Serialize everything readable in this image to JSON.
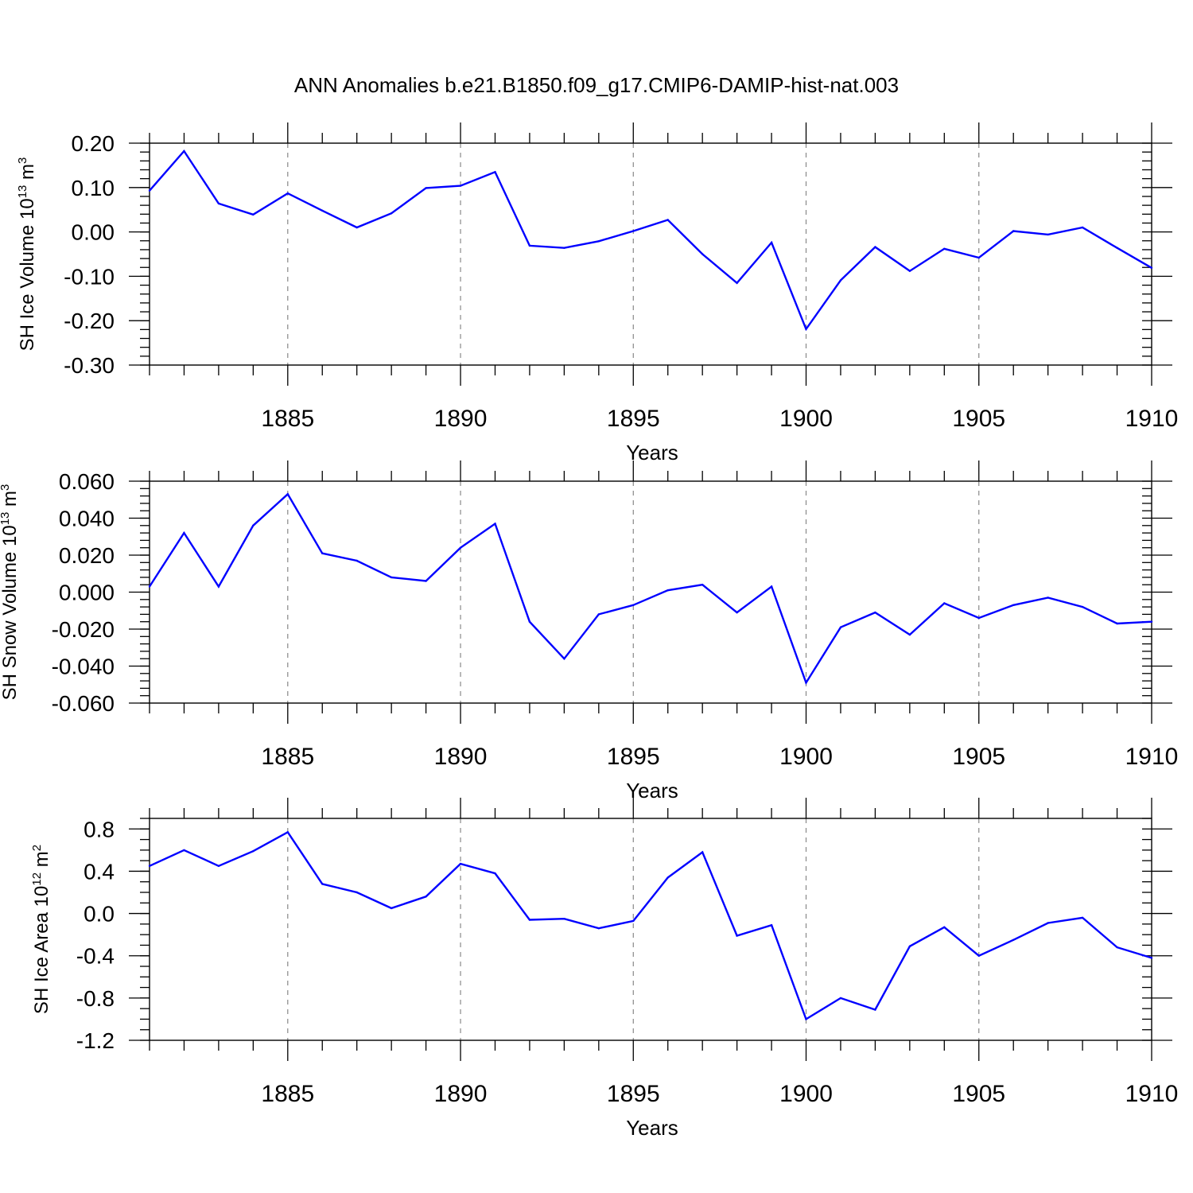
{
  "title": "ANN Anomalies b.e21.B1850.f09_g17.CMIP6-DAMIP-hist-nat.003",
  "colors": {
    "line": "#0000ff",
    "axis": "#000000",
    "grid": "#888888"
  },
  "chart_data": [
    {
      "type": "line",
      "ylabel_main": "SH Ice Volume 10",
      "ylabel_exp": "13",
      "ylabel_unit": " m",
      "ylabel_unit_exp": "3",
      "xlabel": "Years",
      "xlim": [
        1881,
        1910
      ],
      "ylim": [
        -0.3,
        0.2
      ],
      "yticks": [
        0.2,
        0.1,
        0.0,
        -0.1,
        -0.2,
        -0.3
      ],
      "ytick_labels": [
        "0.20",
        "0.10",
        "0.00",
        "-0.10",
        "-0.20",
        "-0.30"
      ],
      "yminor_step": 0.02,
      "xticks": [
        1885,
        1890,
        1895,
        1900,
        1905,
        1910
      ],
      "xtick_labels": [
        "1885",
        "1890",
        "1895",
        "1900",
        "1905",
        "1910"
      ],
      "x": [
        1881,
        1882,
        1883,
        1884,
        1885,
        1886,
        1887,
        1888,
        1889,
        1890,
        1891,
        1892,
        1893,
        1894,
        1895,
        1896,
        1897,
        1898,
        1899,
        1900,
        1901,
        1902,
        1903,
        1904,
        1905,
        1906,
        1907,
        1908,
        1909,
        1910
      ],
      "values": [
        0.093,
        0.182,
        0.064,
        0.039,
        0.087,
        0.048,
        0.01,
        0.042,
        0.099,
        0.104,
        0.135,
        -0.031,
        -0.036,
        -0.021,
        0.002,
        0.027,
        -0.05,
        -0.115,
        -0.024,
        -0.219,
        -0.109,
        -0.034,
        -0.088,
        -0.038,
        -0.058,
        0.002,
        -0.006,
        0.01,
        -0.036,
        -0.081
      ]
    },
    {
      "type": "line",
      "ylabel_main": "SH Snow Volume 10",
      "ylabel_exp": "13",
      "ylabel_unit": " m",
      "ylabel_unit_exp": "3",
      "xlabel": "Years",
      "xlim": [
        1881,
        1910
      ],
      "ylim": [
        -0.06,
        0.06
      ],
      "yticks": [
        0.06,
        0.04,
        0.02,
        0.0,
        -0.02,
        -0.04,
        -0.06
      ],
      "ytick_labels": [
        "0.060",
        "0.040",
        "0.020",
        "0.000",
        "-0.020",
        "-0.040",
        "-0.060"
      ],
      "yminor_step": 0.004,
      "xticks": [
        1885,
        1890,
        1895,
        1900,
        1905,
        1910
      ],
      "xtick_labels": [
        "1885",
        "1890",
        "1895",
        "1900",
        "1905",
        "1910"
      ],
      "x": [
        1881,
        1882,
        1883,
        1884,
        1885,
        1886,
        1887,
        1888,
        1889,
        1890,
        1891,
        1892,
        1893,
        1894,
        1895,
        1896,
        1897,
        1898,
        1899,
        1900,
        1901,
        1902,
        1903,
        1904,
        1905,
        1906,
        1907,
        1908,
        1909,
        1910
      ],
      "values": [
        0.003,
        0.032,
        0.003,
        0.036,
        0.053,
        0.021,
        0.017,
        0.008,
        0.006,
        0.024,
        0.037,
        -0.016,
        -0.036,
        -0.012,
        -0.007,
        0.001,
        0.004,
        -0.011,
        0.003,
        -0.049,
        -0.019,
        -0.011,
        -0.023,
        -0.006,
        -0.014,
        -0.007,
        -0.003,
        -0.008,
        -0.017,
        -0.016
      ]
    },
    {
      "type": "line",
      "ylabel_main": "SH Ice Area 10",
      "ylabel_exp": "12",
      "ylabel_unit": " m",
      "ylabel_unit_exp": "2",
      "xlabel": "Years",
      "xlim": [
        1881,
        1910
      ],
      "ylim": [
        -1.2,
        0.9
      ],
      "yticks": [
        0.8,
        0.4,
        0.0,
        -0.4,
        -0.8,
        -1.2
      ],
      "ytick_labels": [
        "0.8",
        "0.4",
        "0.0",
        "-0.4",
        "-0.8",
        "-1.2"
      ],
      "yminor_step": 0.1,
      "xticks": [
        1885,
        1890,
        1895,
        1900,
        1905,
        1910
      ],
      "xtick_labels": [
        "1885",
        "1890",
        "1895",
        "1900",
        "1905",
        "1910"
      ],
      "x": [
        1881,
        1882,
        1883,
        1884,
        1885,
        1886,
        1887,
        1888,
        1889,
        1890,
        1891,
        1892,
        1893,
        1894,
        1895,
        1896,
        1897,
        1898,
        1899,
        1900,
        1901,
        1902,
        1903,
        1904,
        1905,
        1906,
        1907,
        1908,
        1909,
        1910
      ],
      "values": [
        0.45,
        0.6,
        0.45,
        0.59,
        0.77,
        0.28,
        0.2,
        0.05,
        0.16,
        0.47,
        0.38,
        -0.06,
        -0.05,
        -0.14,
        -0.07,
        0.34,
        0.58,
        -0.21,
        -0.11,
        -1.0,
        -0.8,
        -0.91,
        -0.31,
        -0.13,
        -0.4,
        -0.25,
        -0.09,
        -0.04,
        -0.32,
        -0.42
      ]
    }
  ]
}
